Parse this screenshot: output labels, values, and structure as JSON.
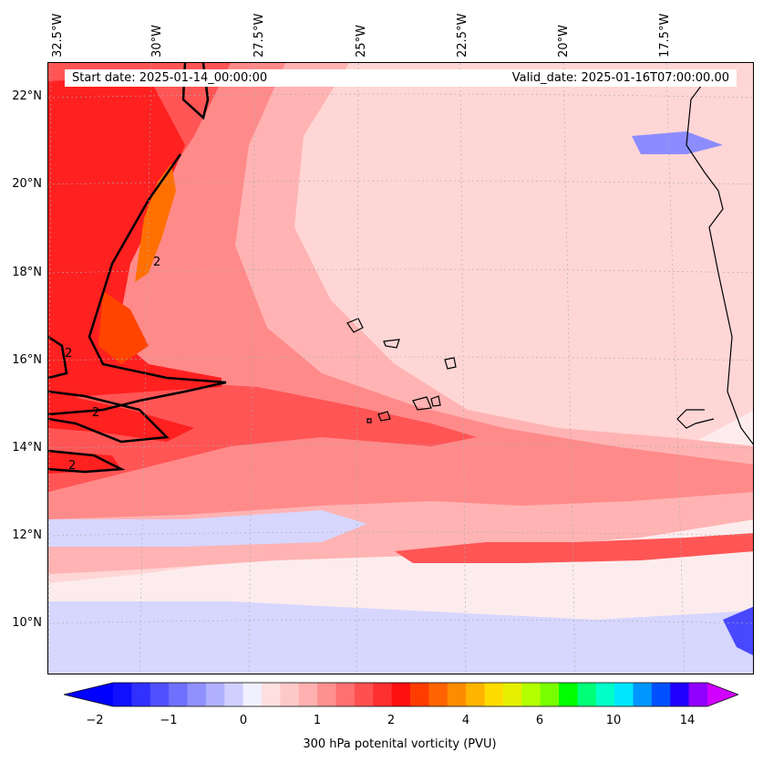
{
  "header": {
    "start_date": "Start date: 2025-01-14_00:00:00",
    "valid_date": "Valid_date: 2025-01-16T07:00:00.00"
  },
  "axes": {
    "longitude_labels": [
      "32.5°W",
      "30°W",
      "27.5°W",
      "25°W",
      "22.5°W",
      "20°W",
      "17.5°W"
    ],
    "latitude_labels": [
      "22°N",
      "20°N",
      "18°N",
      "16°N",
      "14°N",
      "12°N",
      "10°N"
    ]
  },
  "contour_labels": [
    "2",
    "2",
    "2",
    "2"
  ],
  "colorbar": {
    "title": "300 hPa potenital vorticity (PVU)",
    "tick_labels": [
      "−2",
      "−1",
      "0",
      "1",
      "2",
      "4",
      "6",
      "10",
      "14"
    ],
    "colors": [
      "#1010ff",
      "#3030ff",
      "#5050ff",
      "#7070ff",
      "#9090ff",
      "#b0b0ff",
      "#d0d0ff",
      "#f0f0ff",
      "#ffe0e0",
      "#ffc8c8",
      "#ffb0b0",
      "#ff9090",
      "#ff7070",
      "#ff5050",
      "#ff3030",
      "#ff1010",
      "#ff3c00",
      "#ff6400",
      "#ff8c00",
      "#ffb400",
      "#ffdc00",
      "#e6f000",
      "#b4ff00",
      "#78ff00",
      "#00ff00",
      "#00ff78",
      "#00ffc8",
      "#00e6ff",
      "#0096ff",
      "#0050ff",
      "#2000ff",
      "#9000ff"
    ],
    "under_color": "#0000ff",
    "over_color": "#d000ff"
  },
  "field_colors": {
    "background": "#fdeced",
    "light_pink": "#ffd6d6",
    "pink": "#ffb3b3",
    "mid_red": "#ff8a8a",
    "red": "#ff5555",
    "deep_red": "#ff2020",
    "orange_red": "#ff4400",
    "orange": "#ff7000",
    "light_blue": "#d6d6ff",
    "blue": "#8c8cff",
    "deep_blue": "#4848ff"
  }
}
